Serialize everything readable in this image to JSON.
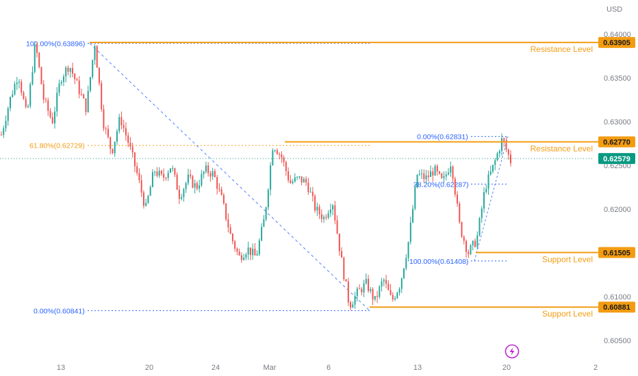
{
  "currency": "USD",
  "colors": {
    "up": "#26a69a",
    "down": "#ef5350",
    "level": "#f39c12",
    "fib_blue": "#2962ff",
    "fib_orange": "#f39c12",
    "current": "#089981",
    "axis_text": "#787b86"
  },
  "chart_data": {
    "type": "candlestick",
    "y_axis_ticks": [
      "0.64000",
      "0.63500",
      "0.63000",
      "0.62500",
      "0.62000",
      "0.61500",
      "0.61000",
      "0.60500"
    ],
    "x_axis_ticks": [
      "13",
      "20",
      "24",
      "Mar",
      "6",
      "13",
      "20",
      "2"
    ],
    "ylim": [
      0.6025,
      0.6425
    ],
    "current_price": "0.62579",
    "levels": [
      {
        "label": "Resistance Level",
        "price": "0.63905"
      },
      {
        "label": "Resistance Level",
        "price": "0.62770"
      },
      {
        "label": "Support Level",
        "price": "0.61505"
      },
      {
        "label": "Support Level",
        "price": "0.60881"
      }
    ],
    "fib_labels": [
      {
        "text": "100.00%(0.63896)",
        "price": 0.63896,
        "color": "blue"
      },
      {
        "text": "61.80%(0.62729)",
        "price": 0.62729,
        "color": "orange"
      },
      {
        "text": "0.00%(0.60841)",
        "price": 0.60841,
        "color": "blue"
      },
      {
        "text": "0.00%(0.62831)",
        "price": 0.62831,
        "color": "blue"
      },
      {
        "text": "38.20%(0.62287)",
        "price": 0.62287,
        "color": "blue"
      },
      {
        "text": "100.00%(0.61408)",
        "price": 0.61408,
        "color": "blue"
      }
    ],
    "price_path": [
      0.6285,
      0.6325,
      0.6355,
      0.6305,
      0.639,
      0.6325,
      0.63,
      0.635,
      0.6365,
      0.634,
      0.6315,
      0.639,
      0.63,
      0.6265,
      0.6305,
      0.6275,
      0.624,
      0.62,
      0.6245,
      0.6235,
      0.625,
      0.6215,
      0.6235,
      0.6225,
      0.6245,
      0.624,
      0.621,
      0.617,
      0.6145,
      0.6155,
      0.6145,
      0.619,
      0.6275,
      0.626,
      0.623,
      0.6235,
      0.623,
      0.62,
      0.619,
      0.621,
      0.6145,
      0.609,
      0.6105,
      0.6115,
      0.6095,
      0.612,
      0.6095,
      0.6115,
      0.6165,
      0.624,
      0.6235,
      0.6245,
      0.623,
      0.6255,
      0.618,
      0.615,
      0.6165,
      0.6225,
      0.625,
      0.628,
      0.6255
    ]
  }
}
